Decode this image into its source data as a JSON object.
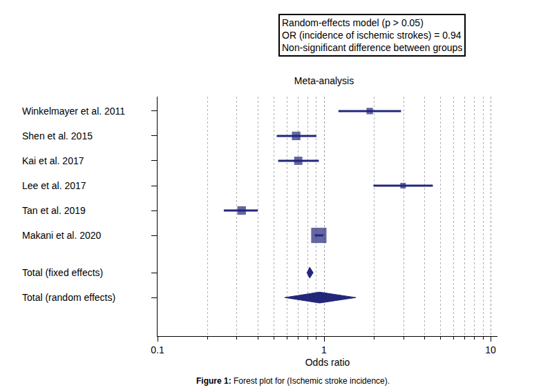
{
  "chart_data": {
    "type": "forest",
    "title": "Meta-analysis",
    "xlabel": "Odds ratio",
    "annotation": [
      "Random-effects model (p > 0.05)",
      "OR (incidence of ischemic strokes) = 0.94",
      "Non-significant difference between groups"
    ],
    "caption_label": "Figure 1:",
    "caption": "Forest plot for (Ischemic stroke incidence).",
    "categories": [
      "Winkelmayer et al. 2011",
      "Shen et al. 2015",
      "Kai et al. 2017",
      "Lee et al. 2017",
      "Tan et al. 2019",
      "Makani et al. 2020",
      "Total (fixed effects)",
      "Total (random effects)"
    ],
    "series": [
      {
        "marker": "square",
        "color": "#22277a",
        "values": [
          1.88,
          0.68,
          0.7,
          2.98,
          0.32,
          0.93,
          null,
          null
        ],
        "ci_lower": [
          1.22,
          0.52,
          0.53,
          1.98,
          0.25,
          0.88,
          null,
          null
        ],
        "ci_upper": [
          2.9,
          0.9,
          0.93,
          4.5,
          0.4,
          0.99,
          null,
          null
        ],
        "weights": [
          8,
          14,
          13,
          6,
          14,
          45,
          null,
          null
        ]
      },
      {
        "marker": "diamond",
        "color": "#22277a",
        "values": [
          null,
          null,
          null,
          null,
          null,
          null,
          0.82,
          0.94
        ],
        "ci_lower": [
          null,
          null,
          null,
          null,
          null,
          null,
          0.79,
          0.58
        ],
        "ci_upper": [
          null,
          null,
          null,
          null,
          null,
          null,
          0.86,
          1.55
        ]
      }
    ],
    "log": "x",
    "xlim": [
      0.1,
      11
    ],
    "xticks": [
      0.1,
      1,
      10
    ],
    "grid": true
  }
}
